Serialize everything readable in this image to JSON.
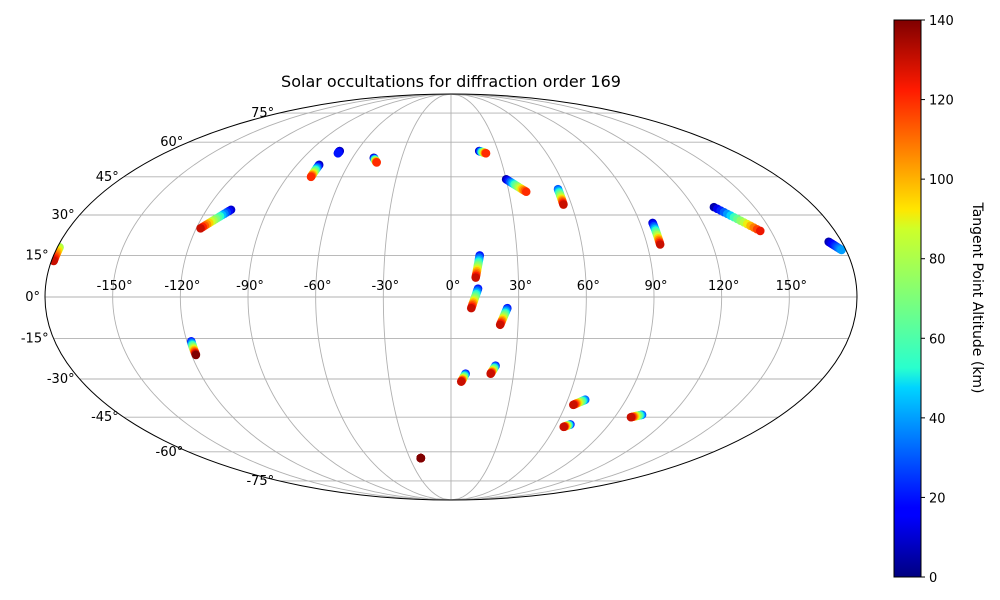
{
  "chart_data": {
    "type": "scatter",
    "projection": "mollweide",
    "title": "Solar occultations for diffraction order 169",
    "lon_ticks": [
      "-150°",
      "-120°",
      "-90°",
      "-60°",
      "-30°",
      "0°",
      "30°",
      "60°",
      "90°",
      "120°",
      "150°"
    ],
    "lat_ticks": [
      "75°",
      "60°",
      "45°",
      "30°",
      "15°",
      "0°",
      "-15°",
      "-30°",
      "-45°",
      "-60°",
      "-75°"
    ],
    "grid": true,
    "colorbar": {
      "label": "Tangent Point Altitude (km)",
      "colormap": "jet",
      "min": 0,
      "max": 140,
      "ticks": [
        "0",
        "20",
        "40",
        "60",
        "80",
        "100",
        "120",
        "140"
      ]
    },
    "tracks": [
      {
        "start": [
          -179,
          18
        ],
        "end": [
          -179,
          13
        ],
        "alt_start": 80,
        "alt_end": 130
      },
      {
        "start": [
          -108,
          32
        ],
        "end": [
          -118,
          25
        ],
        "alt_start": 10,
        "alt_end": 130
      },
      {
        "start": [
          -118,
          -16
        ],
        "end": [
          -118,
          -21
        ],
        "alt_start": 20,
        "alt_end": 140
      },
      {
        "start": [
          -77,
          50
        ],
        "end": [
          -77,
          45
        ],
        "alt_start": 5,
        "alt_end": 120
      },
      {
        "start": [
          -71,
          56
        ],
        "end": [
          -71,
          55
        ],
        "alt_start": 5,
        "alt_end": 20
      },
      {
        "start": [
          -47,
          53
        ],
        "end": [
          -44,
          51
        ],
        "alt_start": 5,
        "alt_end": 120
      },
      {
        "start": [
          -22,
          -63
        ],
        "end": [
          -22,
          -63
        ],
        "alt_start": 130,
        "alt_end": 140
      },
      {
        "start": [
          18,
          56
        ],
        "end": [
          22,
          55
        ],
        "alt_start": 5,
        "alt_end": 120
      },
      {
        "start": [
          30,
          44
        ],
        "end": [
          39,
          39
        ],
        "alt_start": 5,
        "alt_end": 120
      },
      {
        "start": [
          13,
          15
        ],
        "end": [
          11,
          7
        ],
        "alt_start": 20,
        "alt_end": 130
      },
      {
        "start": [
          12,
          3
        ],
        "end": [
          9,
          -4
        ],
        "alt_start": 20,
        "alt_end": 130
      },
      {
        "start": [
          25,
          -4
        ],
        "end": [
          22,
          -10
        ],
        "alt_start": 20,
        "alt_end": 130
      },
      {
        "start": [
          7,
          -28
        ],
        "end": [
          5,
          -31
        ],
        "alt_start": 20,
        "alt_end": 130
      },
      {
        "start": [
          21,
          -25
        ],
        "end": [
          19,
          -28
        ],
        "alt_start": 20,
        "alt_end": 130
      },
      {
        "start": [
          56,
          40
        ],
        "end": [
          56,
          34
        ],
        "alt_start": 30,
        "alt_end": 130
      },
      {
        "start": [
          69,
          -38
        ],
        "end": [
          64,
          -40
        ],
        "alt_start": 30,
        "alt_end": 130
      },
      {
        "start": [
          68,
          -48
        ],
        "end": [
          65,
          -49
        ],
        "alt_start": 20,
        "alt_end": 130
      },
      {
        "start": [
          104,
          -44
        ],
        "end": [
          99,
          -45
        ],
        "alt_start": 30,
        "alt_end": 130
      },
      {
        "start": [
          96,
          27
        ],
        "end": [
          96,
          19
        ],
        "alt_start": 10,
        "alt_end": 130
      },
      {
        "start": [
          130,
          33
        ],
        "end": [
          145,
          24
        ],
        "alt_start": 5,
        "alt_end": 125
      },
      {
        "start": [
          174,
          20
        ],
        "end": [
          178,
          17
        ],
        "alt_start": 5,
        "alt_end": 40
      }
    ]
  }
}
